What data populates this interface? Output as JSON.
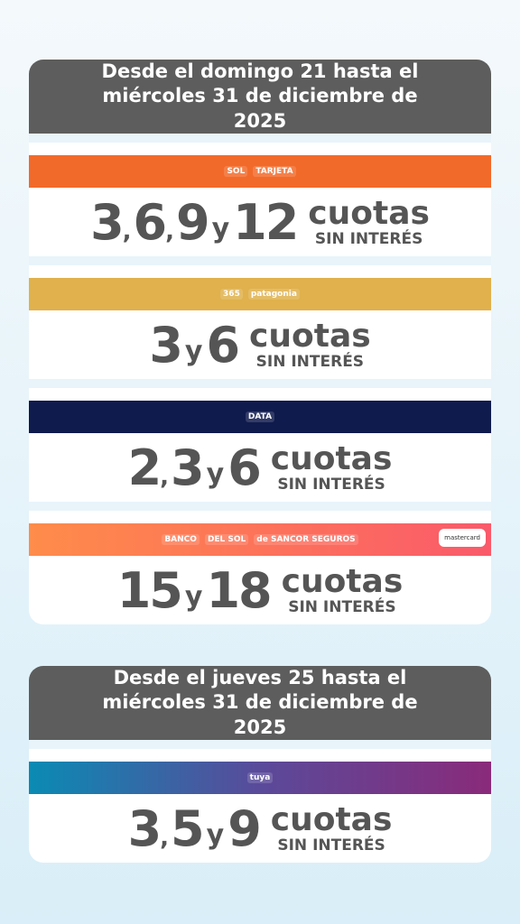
{
  "cards": [
    {
      "header": "Desde el domingo 21 hasta el miércoles 31 de diciembre de 2025",
      "offers": [
        {
          "logo": [
            "SOL",
            "TARJETA"
          ],
          "band": "#f26a2a",
          "amounts": [
            "3",
            "6",
            "9",
            "12"
          ],
          "separator": ",",
          "conjunction": "y",
          "word": "cuotas",
          "sub": "SIN INTERÉS"
        },
        {
          "logo": [
            "365",
            "patagonia"
          ],
          "band": "#e0b14c",
          "amounts": [
            "3",
            "6"
          ],
          "separator": ",",
          "conjunction": "y",
          "word": "cuotas",
          "sub": "SIN INTERÉS"
        },
        {
          "logo": [
            "DATA"
          ],
          "band": "#0f1a4d",
          "amounts": [
            "2",
            "3",
            "6"
          ],
          "separator": ",",
          "conjunction": "y",
          "word": "cuotas",
          "sub": "SIN INTERÉS"
        },
        {
          "logo": [
            "BANCO",
            "DEL SOL",
            "de SANCOR SEGUROS"
          ],
          "band": "linear-gradient(90deg,#ff8c4a,#fa5a6a)",
          "badge": "mastercard",
          "amounts": [
            "15",
            "18"
          ],
          "separator": ",",
          "conjunction": "y",
          "word": "cuotas",
          "sub": "SIN INTERÉS"
        }
      ]
    },
    {
      "header": "Desde el jueves 25 hasta el miércoles 31 de diciembre de 2025",
      "offers": [
        {
          "logo": [
            "tuya"
          ],
          "band": "linear-gradient(90deg,#0a8bb4,#5a4a9a,#8a2a7a)",
          "amounts": [
            "3",
            "5",
            "9"
          ],
          "separator": ",",
          "conjunction": "y",
          "word": "cuotas",
          "sub": "SIN INTERÉS"
        }
      ]
    }
  ]
}
